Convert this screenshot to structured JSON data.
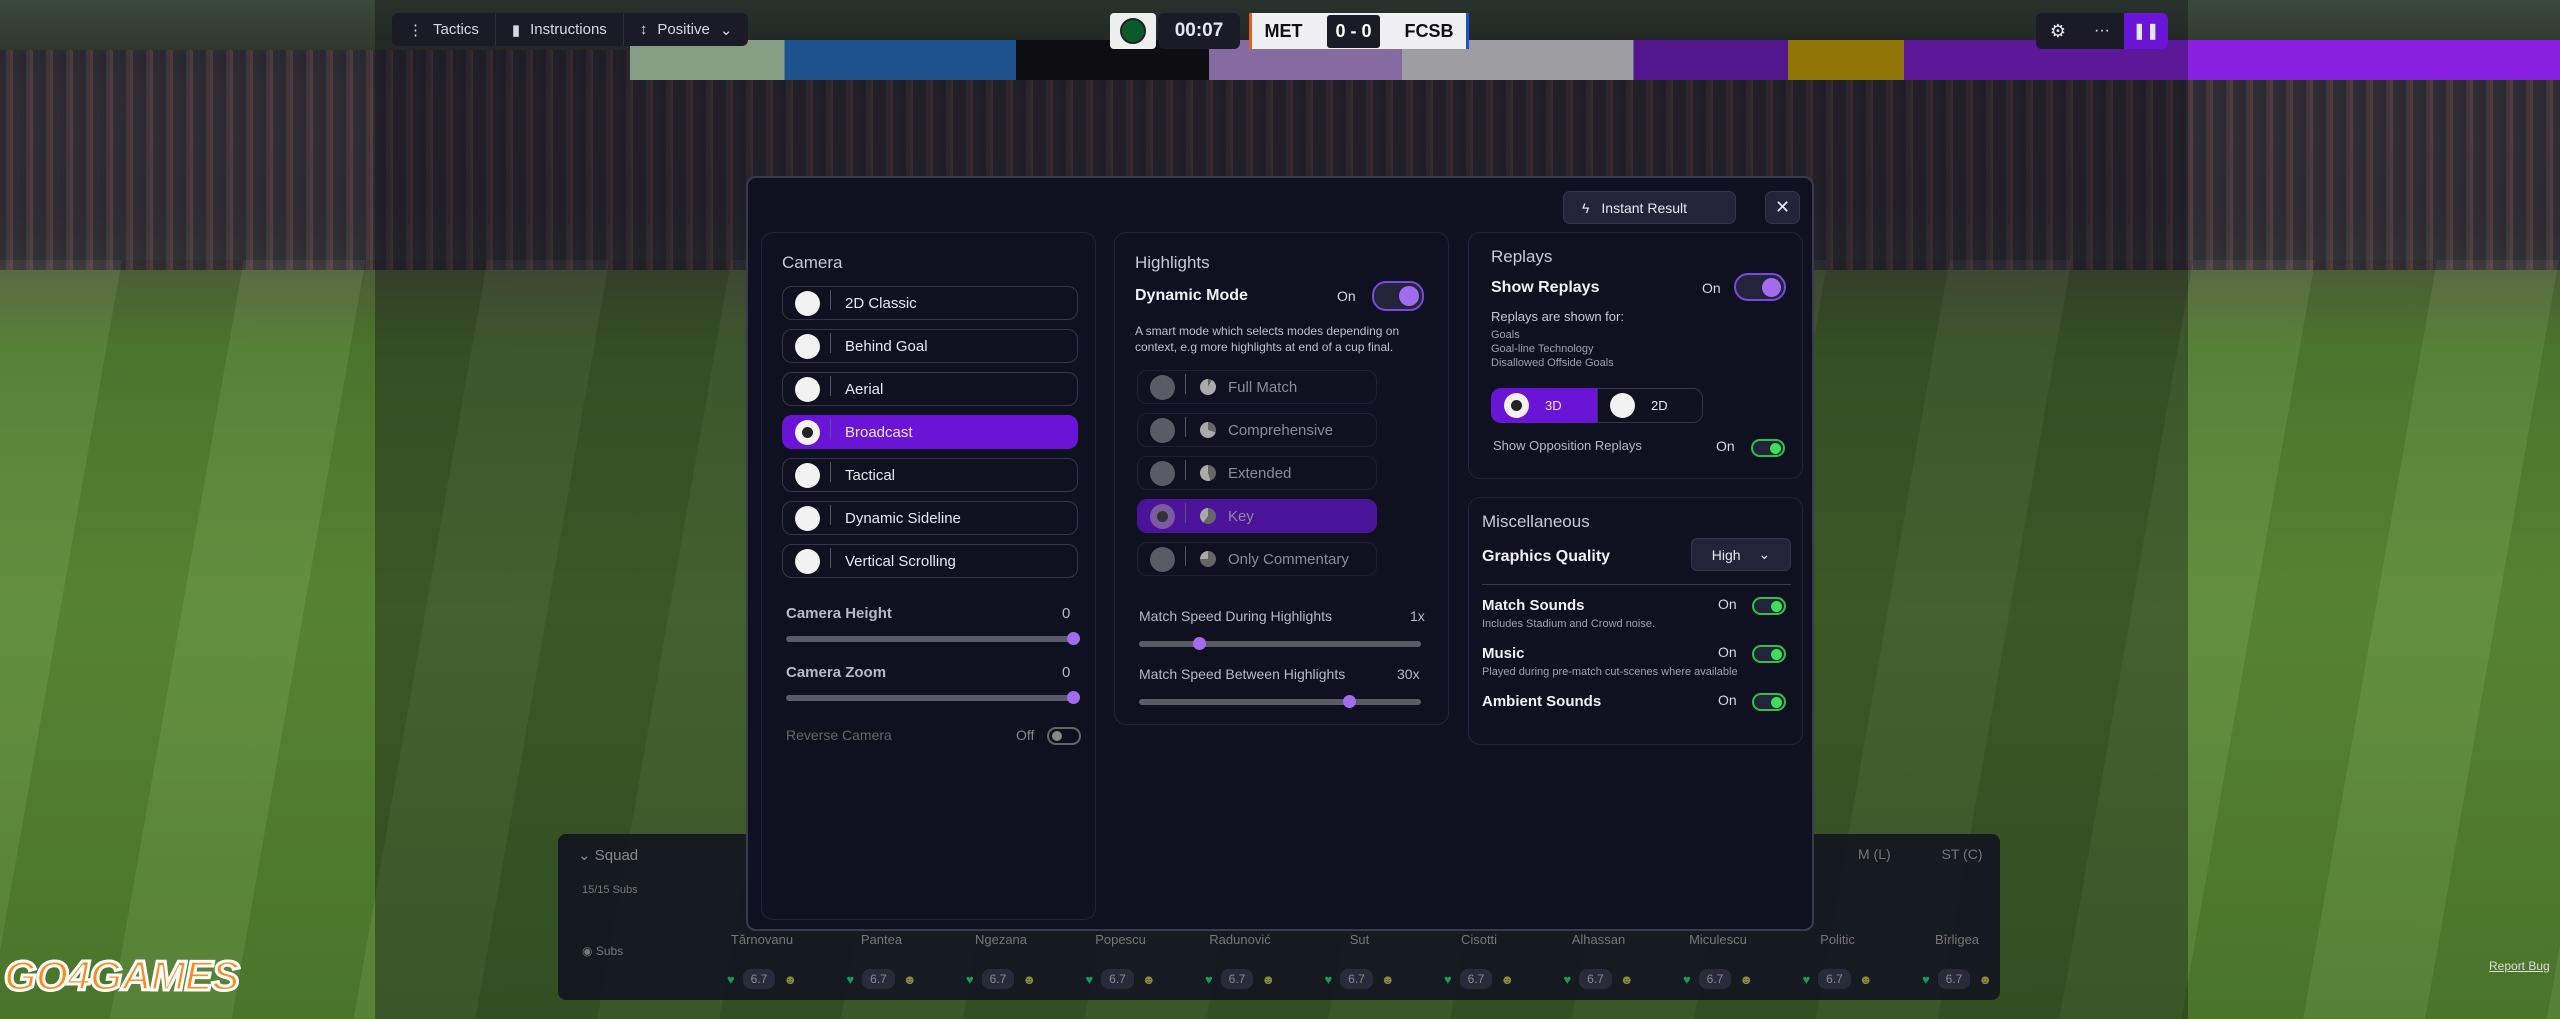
{
  "topbar": {
    "tactics": "Tactics",
    "instructions": "Instructions",
    "mentality": "Positive",
    "time": "00:07",
    "home": "MET",
    "score": "0 - 0",
    "away": "FCSB",
    "settings_icon": "gear-icon",
    "more_icon": "ellipsis-icon",
    "pause_icon": "pause-icon"
  },
  "modal": {
    "instant_result": "Instant Result",
    "camera": {
      "title": "Camera",
      "options": [
        "2D Classic",
        "Behind Goal",
        "Aerial",
        "Broadcast",
        "Tactical",
        "Dynamic Sideline",
        "Vertical Scrolling"
      ],
      "selected": "Broadcast",
      "height_label": "Camera Height",
      "height_value": "0",
      "zoom_label": "Camera Zoom",
      "zoom_value": "0",
      "reverse_label": "Reverse Camera",
      "reverse_value": "Off"
    },
    "highlights": {
      "title": "Highlights",
      "dynamic_label": "Dynamic Mode",
      "dynamic_value": "On",
      "dynamic_desc": "A smart mode which selects modes depending on context, e.g more highlights at end of a cup final.",
      "options": [
        "Full Match",
        "Comprehensive",
        "Extended",
        "Key",
        "Only Commentary"
      ],
      "selected": "Key",
      "speed_during_label": "Match Speed During Highlights",
      "speed_during_value": "1x",
      "speed_between_label": "Match Speed Between Highlights",
      "speed_between_value": "30x"
    },
    "replays": {
      "title": "Replays",
      "show_label": "Show Replays",
      "show_value": "On",
      "shown_for": "Replays are shown for:",
      "types": [
        "Goals",
        "Goal-line Technology",
        "Disallowed Offside Goals"
      ],
      "mode_3d": "3D",
      "mode_2d": "2D",
      "selected_mode": "3D",
      "opp_label": "Show Opposition Replays",
      "opp_value": "On"
    },
    "misc": {
      "title": "Miscellaneous",
      "graphics_label": "Graphics Quality",
      "graphics_value": "High",
      "match_sounds": "Match Sounds",
      "match_sounds_value": "On",
      "match_sounds_desc": "Includes Stadium and Crowd noise.",
      "music": "Music",
      "music_value": "On",
      "music_desc": "Played during pre-match cut-scenes where available",
      "ambient": "Ambient Sounds",
      "ambient_value": "On"
    }
  },
  "squad": {
    "title": "Squad",
    "subs": "15/15 Subs",
    "subs_toggle": "Subs",
    "positions": [
      "M (L)",
      "ST (C)"
    ],
    "players": [
      {
        "name": "Tărnovanu",
        "rating": "6.7"
      },
      {
        "name": "Pantea",
        "rating": "6.7"
      },
      {
        "name": "Ngezana",
        "rating": "6.7"
      },
      {
        "name": "Popescu",
        "rating": "6.7"
      },
      {
        "name": "Radunović",
        "rating": "6.7"
      },
      {
        "name": "Sut",
        "rating": "6.7"
      },
      {
        "name": "Cisotti",
        "rating": "6.7"
      },
      {
        "name": "Alhassan",
        "rating": "6.7"
      },
      {
        "name": "Miculescu",
        "rating": "6.7"
      },
      {
        "name": "Politic",
        "rating": "6.7"
      },
      {
        "name": "Bîrligea",
        "rating": "6.7"
      }
    ]
  },
  "logo": "GO4GAMES",
  "report_bug": "Report Bug",
  "colors": {
    "accent": "#6a14d8",
    "toggle_green": "#3ee05a",
    "modal_bg": "#0f1020"
  }
}
